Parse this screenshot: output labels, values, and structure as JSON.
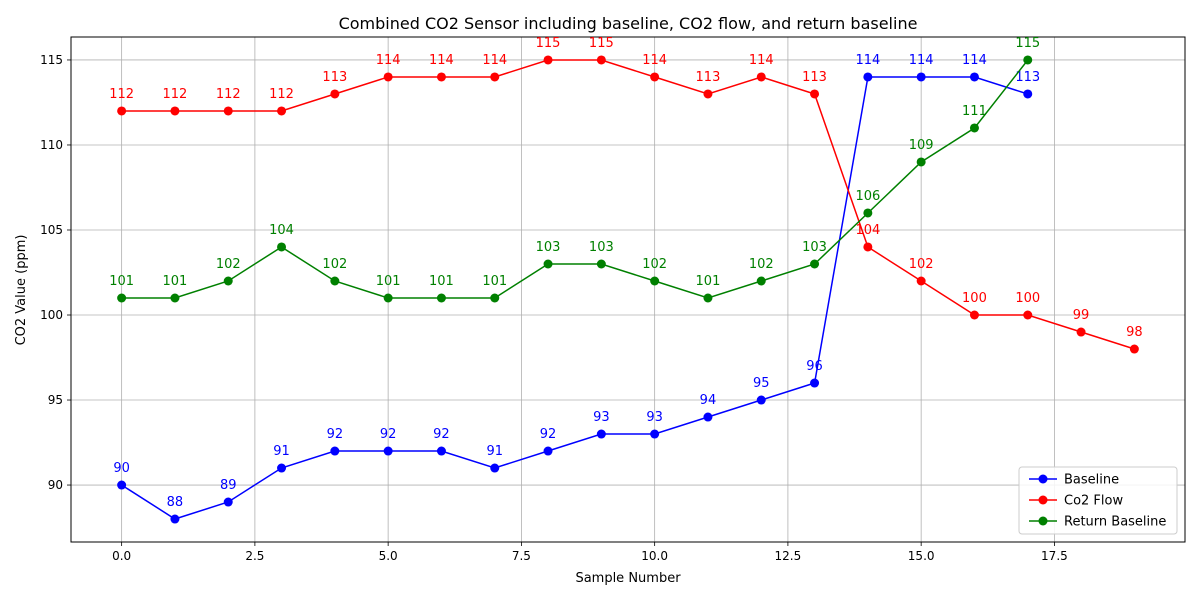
{
  "chart_data": {
    "type": "line",
    "title": "Combined CO2 Sensor including baseline, CO2 flow, and return baseline",
    "xlabel": "Sample Number",
    "ylabel": "CO2 Value (ppm)",
    "xlim": [
      -0.95,
      19.95
    ],
    "ylim": [
      86.65,
      116.35
    ],
    "xticks": [
      0.0,
      2.5,
      5.0,
      7.5,
      10.0,
      12.5,
      15.0,
      17.5
    ],
    "xtick_labels": [
      "0.0",
      "2.5",
      "5.0",
      "7.5",
      "10.0",
      "12.5",
      "15.0",
      "17.5"
    ],
    "yticks": [
      90,
      95,
      100,
      105,
      110,
      115
    ],
    "ytick_labels": [
      "90",
      "95",
      "100",
      "105",
      "110",
      "115"
    ],
    "grid": true,
    "legend_position": "lower-right",
    "series": [
      {
        "name": "Baseline",
        "color": "#0000ff",
        "x": [
          0,
          1,
          2,
          3,
          4,
          5,
          6,
          7,
          8,
          9,
          10,
          11,
          12,
          13,
          14,
          15,
          16,
          17
        ],
        "values": [
          90,
          88,
          89,
          91,
          92,
          92,
          92,
          91,
          92,
          93,
          93,
          94,
          95,
          96,
          114,
          114,
          114,
          113
        ]
      },
      {
        "name": "Co2 Flow",
        "color": "#ff0000",
        "x": [
          0,
          1,
          2,
          3,
          4,
          5,
          6,
          7,
          8,
          9,
          10,
          11,
          12,
          13,
          14,
          15,
          16,
          17,
          18,
          19
        ],
        "values": [
          112,
          112,
          112,
          112,
          113,
          114,
          114,
          114,
          115,
          115,
          114,
          113,
          114,
          113,
          104,
          102,
          100,
          100,
          99,
          98
        ]
      },
      {
        "name": "Return Baseline",
        "color": "#008000",
        "x": [
          0,
          1,
          2,
          3,
          4,
          5,
          6,
          7,
          8,
          9,
          10,
          11,
          12,
          13,
          14,
          15,
          16,
          17
        ],
        "values": [
          101,
          101,
          102,
          104,
          102,
          101,
          101,
          101,
          103,
          103,
          102,
          101,
          102,
          103,
          106,
          109,
          111,
          115
        ]
      }
    ]
  }
}
